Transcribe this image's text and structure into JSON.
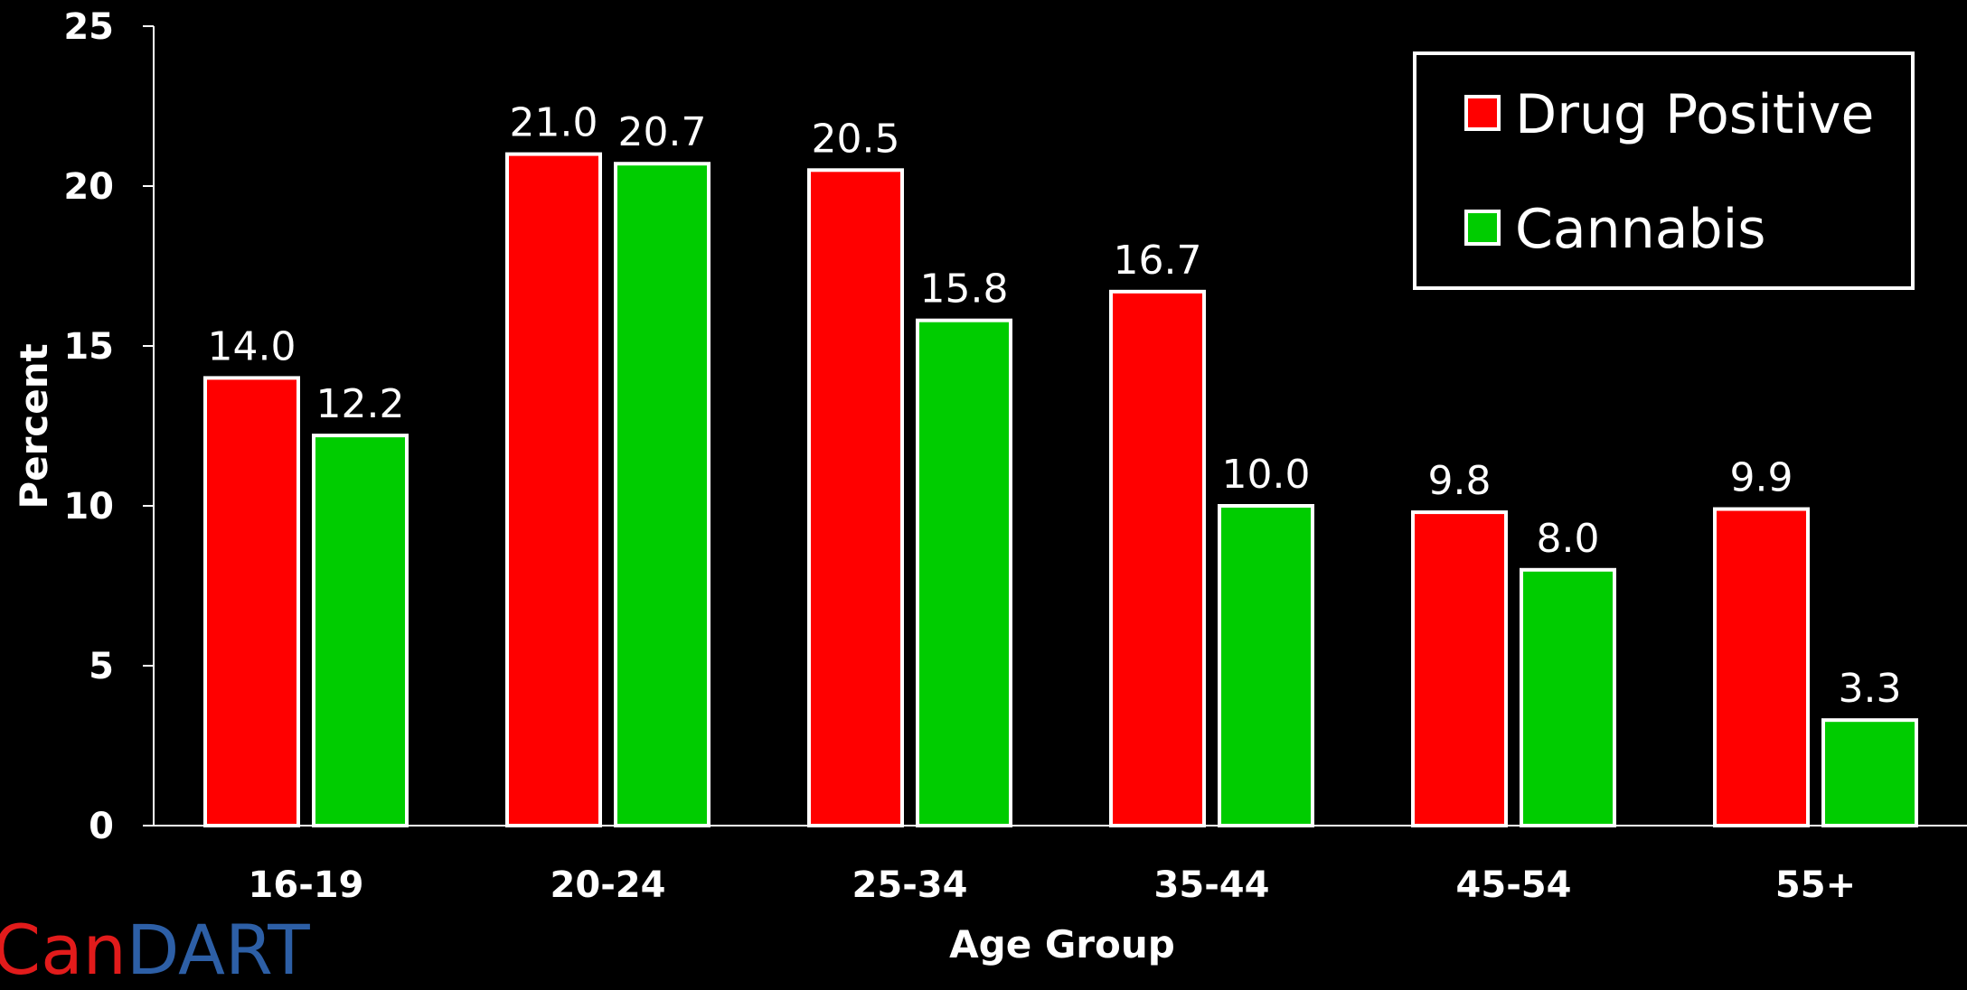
{
  "chart_data": {
    "type": "bar",
    "categories": [
      "16-19",
      "20-24",
      "25-34",
      "35-44",
      "45-54",
      "55+"
    ],
    "series": [
      {
        "name": "Drug Positive",
        "color": "#ff0000",
        "values": [
          14.0,
          21.0,
          20.5,
          16.7,
          9.8,
          9.9
        ]
      },
      {
        "name": "Cannabis",
        "color": "#00cc00",
        "values": [
          12.2,
          20.7,
          15.8,
          10.0,
          8.0,
          3.3
        ]
      }
    ],
    "value_labels": [
      [
        "14.0",
        "21.0",
        "20.5",
        "16.7",
        "9.8",
        "9.9"
      ],
      [
        "12.2",
        "20.7",
        "15.8",
        "10.0",
        "8.0",
        "3.3"
      ]
    ],
    "xlabel": "Age Group",
    "ylabel": "Percent",
    "ylim": [
      0,
      25
    ],
    "yticks": [
      0,
      5,
      10,
      15,
      20,
      25
    ],
    "grid": false,
    "legend_position": "top-right",
    "background": "#000000",
    "bar_outline_color": "#ffffff"
  },
  "logo": {
    "part1": "Can",
    "part2": "DART"
  }
}
